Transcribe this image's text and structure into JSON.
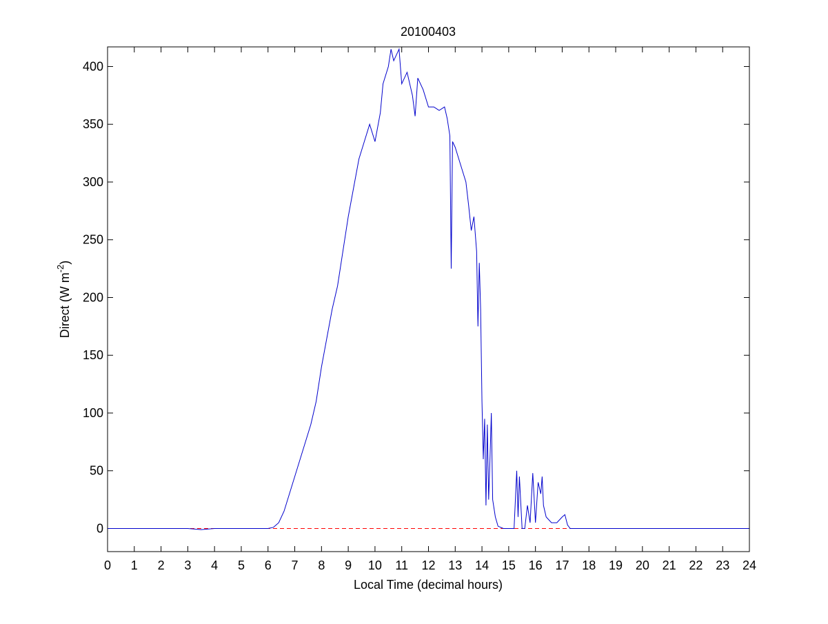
{
  "chart_data": {
    "type": "line",
    "title": "20100403",
    "xlabel": "Local Time (decimal hours)",
    "ylabel_parts": [
      "Direct (W m",
      "-2",
      ")"
    ],
    "x": [
      0,
      1,
      2,
      3,
      3.5,
      4,
      5,
      6,
      6.2,
      6.4,
      6.6,
      6.8,
      7,
      7.2,
      7.4,
      7.6,
      7.8,
      8,
      8.2,
      8.4,
      8.6,
      8.8,
      9,
      9.2,
      9.4,
      9.6,
      9.8,
      10,
      10.2,
      10.3,
      10.5,
      10.6,
      10.7,
      10.8,
      10.9,
      11,
      11.2,
      11.4,
      11.5,
      11.6,
      11.8,
      12,
      12.2,
      12.4,
      12.6,
      12.7,
      12.8,
      12.85,
      12.9,
      13,
      13.2,
      13.4,
      13.5,
      13.6,
      13.7,
      13.8,
      13.85,
      13.9,
      13.95,
      14,
      14.05,
      14.1,
      14.15,
      14.2,
      14.25,
      14.3,
      14.35,
      14.4,
      14.5,
      14.6,
      14.8,
      15,
      15.2,
      15.3,
      15.35,
      15.4,
      15.5,
      15.6,
      15.7,
      15.8,
      15.9,
      16,
      16.1,
      16.2,
      16.25,
      16.3,
      16.4,
      16.6,
      16.8,
      17,
      17.1,
      17.2,
      17.3,
      18,
      20,
      22,
      24
    ],
    "series": [
      {
        "color": "#0000cc",
        "values": [
          0,
          0,
          0,
          0,
          -1,
          0,
          0,
          0,
          1,
          5,
          15,
          30,
          45,
          60,
          75,
          90,
          110,
          140,
          165,
          190,
          210,
          240,
          270,
          295,
          320,
          335,
          350,
          335,
          360,
          385,
          400,
          415,
          405,
          410,
          415,
          385,
          395,
          375,
          357,
          390,
          380,
          365,
          365,
          362,
          365,
          355,
          340,
          225,
          335,
          330,
          315,
          300,
          280,
          258,
          270,
          240,
          175,
          230,
          190,
          110,
          60,
          95,
          20,
          90,
          25,
          60,
          100,
          25,
          10,
          2,
          0,
          0,
          0,
          50,
          10,
          45,
          0,
          0,
          20,
          5,
          48,
          5,
          40,
          30,
          45,
          20,
          10,
          5,
          5,
          10,
          12,
          3,
          0,
          0,
          0,
          0,
          0
        ]
      }
    ],
    "reference_line": {
      "value": 0,
      "color": "#ff0000"
    },
    "xlim": [
      0,
      24
    ],
    "ylim": [
      -20,
      417
    ],
    "xticks": [
      0,
      1,
      2,
      3,
      4,
      5,
      6,
      7,
      8,
      9,
      10,
      11,
      12,
      13,
      14,
      15,
      16,
      17,
      18,
      19,
      20,
      21,
      22,
      23,
      24
    ],
    "yticks": [
      0,
      50,
      100,
      150,
      200,
      250,
      300,
      350,
      400
    ]
  }
}
